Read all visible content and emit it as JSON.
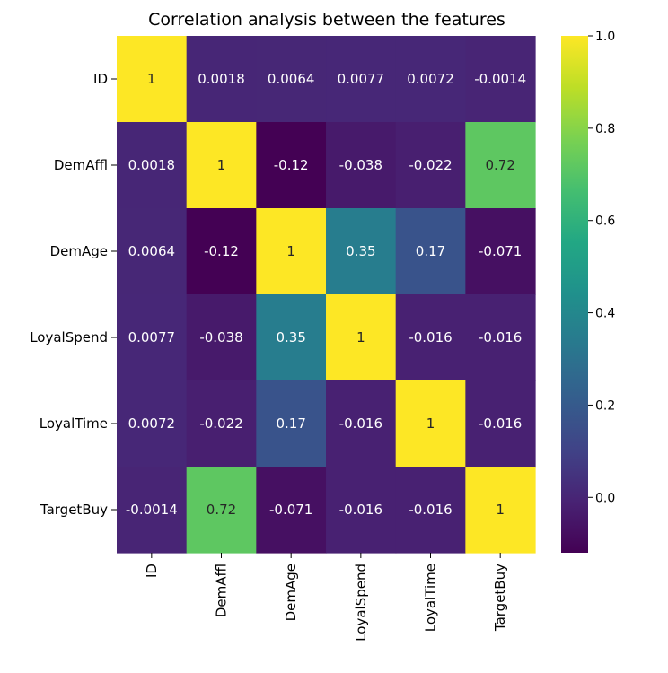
{
  "chart_data": {
    "type": "heatmap",
    "title": "Correlation analysis between the features",
    "rows": [
      "ID",
      "DemAffl",
      "DemAge",
      "LoyalSpend",
      "LoyalTime",
      "TargetBuy"
    ],
    "cols": [
      "ID",
      "DemAffl",
      "DemAge",
      "LoyalSpend",
      "LoyalTime",
      "TargetBuy"
    ],
    "values": [
      [
        1,
        0.0018,
        0.0064,
        0.0077,
        0.0072,
        -0.0014
      ],
      [
        0.0018,
        1,
        -0.12,
        -0.038,
        -0.022,
        0.72
      ],
      [
        0.0064,
        -0.12,
        1,
        0.35,
        0.17,
        -0.071
      ],
      [
        0.0077,
        -0.038,
        0.35,
        1,
        -0.016,
        -0.016
      ],
      [
        0.0072,
        -0.022,
        0.17,
        -0.016,
        1,
        -0.016
      ],
      [
        -0.0014,
        0.72,
        -0.071,
        -0.016,
        -0.016,
        1
      ]
    ],
    "labels": [
      [
        "1",
        "0.0018",
        "0.0064",
        "0.0077",
        "0.0072",
        "-0.0014"
      ],
      [
        "0.0018",
        "1",
        "-0.12",
        "-0.038",
        "-0.022",
        "0.72"
      ],
      [
        "0.0064",
        "-0.12",
        "1",
        "0.35",
        "0.17",
        "-0.071"
      ],
      [
        "0.0077",
        "-0.038",
        "0.35",
        "1",
        "-0.016",
        "-0.016"
      ],
      [
        "0.0072",
        "-0.022",
        "0.17",
        "-0.016",
        "1",
        "-0.016"
      ],
      [
        "-0.0014",
        "0.72",
        "-0.071",
        "-0.016",
        "-0.016",
        "1"
      ]
    ],
    "colormap": "viridis",
    "vmin": -0.12,
    "vmax": 1.0,
    "colorbar": {
      "ticks": [
        0.0,
        0.2,
        0.4,
        0.6,
        0.8,
        1.0
      ],
      "tick_labels": [
        "0.0",
        "0.2",
        "0.4",
        "0.6",
        "0.8",
        "1.0"
      ]
    },
    "annotations": true
  }
}
